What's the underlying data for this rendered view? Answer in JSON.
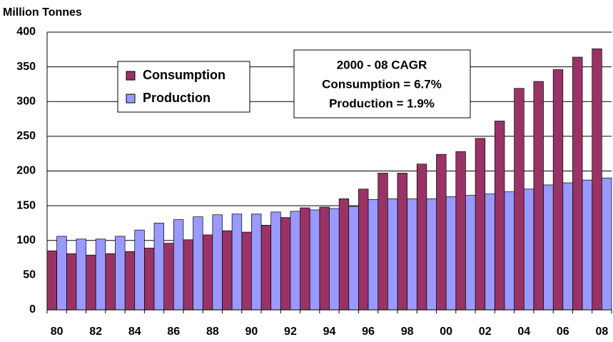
{
  "chart_data": {
    "type": "bar",
    "y_label": "Million Tonnes",
    "categories": [
      "80",
      null,
      "82",
      null,
      "84",
      null,
      "86",
      null,
      "88",
      null,
      "90",
      null,
      "92",
      null,
      "94",
      null,
      "96",
      null,
      "98",
      null,
      "00",
      null,
      "02",
      null,
      "04",
      null,
      "06",
      null,
      "08"
    ],
    "series": [
      {
        "name": "Consumption",
        "color": "#993366",
        "values": [
          85,
          81,
          79,
          81,
          84,
          89,
          96,
          101,
          108,
          114,
          112,
          122,
          133,
          147,
          148,
          160,
          174,
          197,
          197,
          210,
          224,
          228,
          247,
          272,
          319,
          329,
          346,
          364,
          376
        ]
      },
      {
        "name": "Production",
        "color": "#9999ff",
        "values": [
          106,
          102,
          102,
          106,
          115,
          125,
          130,
          134,
          137,
          138,
          138,
          141,
          142,
          144,
          146,
          149,
          159,
          160,
          160,
          160,
          163,
          165,
          167,
          170,
          174,
          180,
          183,
          187,
          190
        ]
      }
    ],
    "annotations": [
      "2000 - 08 CAGR",
      "Consumption = 6.7%",
      "Production = 1.9%"
    ],
    "ylim": [
      0,
      400
    ],
    "yticks": [
      0,
      50,
      100,
      150,
      200,
      250,
      300,
      350,
      400
    ],
    "grid": true
  }
}
